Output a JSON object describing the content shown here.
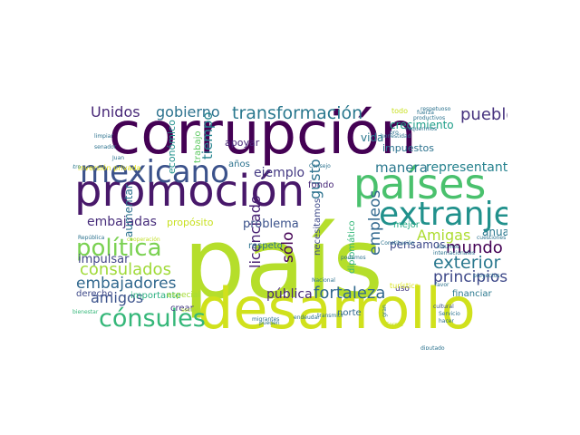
{
  "words": [
    {
      "text": "corrupción",
      "color": "#440154"
    },
    {
      "text": "país",
      "color": "#b5de2b"
    },
    {
      "text": "desarrollo",
      "color": "#d0e11c"
    },
    {
      "text": "promoción",
      "color": "#48186a"
    },
    {
      "text": "países",
      "color": "#4ac16d"
    },
    {
      "text": "mexicano",
      "color": "#3b528b"
    },
    {
      "text": "extranjero",
      "color": "#21918c"
    },
    {
      "text": "política",
      "color": "#7ad151"
    },
    {
      "text": "cónsules",
      "color": "#35b779"
    },
    {
      "text": "consulados",
      "color": "#a0da39"
    },
    {
      "text": "transformación",
      "color": "#2a788e"
    },
    {
      "text": "gobierno",
      "color": "#2c728e"
    },
    {
      "text": "Unidos",
      "color": "#482878"
    },
    {
      "text": "pueblo",
      "color": "#46327e"
    },
    {
      "text": "embajadores",
      "color": "#31688e"
    },
    {
      "text": "principios",
      "color": "#3e4989"
    },
    {
      "text": "exterior",
      "color": "#2a788e"
    },
    {
      "text": "mundo",
      "color": "#440154"
    },
    {
      "text": "fortaleza",
      "color": "#31688e"
    },
    {
      "text": "embajadas",
      "color": "#472d7b"
    },
    {
      "text": "amigos",
      "color": "#3b528b"
    },
    {
      "text": "Amigas",
      "color": "#addc30"
    },
    {
      "text": "manera",
      "color": "#2a788e"
    },
    {
      "text": "representante",
      "color": "#26828e"
    },
    {
      "text": "empleos",
      "color": "#31688e"
    },
    {
      "text": "ejemplo",
      "color": "#443983"
    },
    {
      "text": "sólo",
      "color": "#440154"
    },
    {
      "text": "gusto",
      "color": "#2c728e"
    },
    {
      "text": "licenciado",
      "color": "#482173"
    },
    {
      "text": "problema",
      "color": "#3b528b"
    },
    {
      "text": "pública",
      "color": "#482878"
    },
    {
      "text": "impulsar",
      "color": "#414487"
    },
    {
      "text": "aumentar",
      "color": "#2c728e"
    },
    {
      "text": "crecimiento",
      "color": "#1f9e89"
    },
    {
      "text": "impuestos",
      "color": "#2c728e"
    },
    {
      "text": "económico",
      "color": "#21918c"
    },
    {
      "text": "trabajo",
      "color": "#5ec962"
    },
    {
      "text": "tiempo",
      "color": "#25848e"
    },
    {
      "text": "apoyar",
      "color": "#482878"
    },
    {
      "text": "vida",
      "color": "#2a788e"
    },
    {
      "text": "fondo",
      "color": "#482878"
    },
    {
      "text": "propósito",
      "color": "#c8e020"
    },
    {
      "text": "pensamos",
      "color": "#3e4989"
    },
    {
      "text": "anual",
      "color": "#2a788e"
    },
    {
      "text": "paz",
      "color": "#3b528b"
    },
    {
      "text": "respeto",
      "color": "#2c728e"
    },
    {
      "text": "necesitamos",
      "color": "#3e4989"
    },
    {
      "text": "diplomático",
      "color": "#35b779"
    },
    {
      "text": "mejor",
      "color": "#22a884"
    },
    {
      "text": "derecho",
      "color": "#3e4989"
    },
    {
      "text": "importante",
      "color": "#29af7f"
    },
    {
      "text": "especial",
      "color": "#a5db36"
    },
    {
      "text": "crear",
      "color": "#443983"
    },
    {
      "text": "norte",
      "color": "#31688e"
    },
    {
      "text": "financiar",
      "color": "#2a788e"
    },
    {
      "text": "Relaciones",
      "color": "#3e4989"
    },
    {
      "text": "uso",
      "color": "#443983"
    },
    {
      "text": "años",
      "color": "#2c728e"
    },
    {
      "text": "todo",
      "color": "#c8e020"
    },
    {
      "text": "turística",
      "color": "#d8e219"
    },
    {
      "text": "inversión privada",
      "color": "#e5e419"
    },
    {
      "text": "cuatro",
      "color": "#2a788e"
    },
    {
      "text": "limpiar",
      "color": "#2c728e"
    },
    {
      "text": "senador",
      "color": "#2c728e"
    },
    {
      "text": "Juan",
      "color": "#2c728e"
    },
    {
      "text": "República",
      "color": "#2c728e"
    },
    {
      "text": "cooperación",
      "color": "#c0df25"
    },
    {
      "text": "cultural",
      "color": "#3b528b"
    },
    {
      "text": "Servicio",
      "color": "#2c728e"
    },
    {
      "text": "bienestar",
      "color": "#35b779"
    },
    {
      "text": "sector",
      "color": "#addc30"
    },
    {
      "text": "migrantes",
      "color": "#2c728e"
    },
    {
      "text": "diputado",
      "color": "#2c728e"
    },
    {
      "text": "hacer",
      "color": "#2c728e"
    },
    {
      "text": "Consejo",
      "color": "#2c728e"
    },
    {
      "text": "Nacional",
      "color": "#2c728e"
    },
    {
      "text": "transmitir",
      "color": "#2c728e"
    },
    {
      "text": "podamos",
      "color": "#2c728e"
    },
    {
      "text": "Constitución",
      "color": "#2c728e"
    },
    {
      "text": "insumos",
      "color": "#2c728e"
    },
    {
      "text": "internacionales",
      "color": "#2c728e"
    },
    {
      "text": "favor",
      "color": "#2c728e"
    },
    {
      "text": "proyectos",
      "color": "#2c728e"
    },
    {
      "text": "cuestiones",
      "color": "#2c728e"
    },
    {
      "text": "respetuoso",
      "color": "#2c728e"
    },
    {
      "text": "requerimos",
      "color": "#2c728e"
    },
    {
      "text": "honestidad",
      "color": "#2c728e"
    },
    {
      "text": "productivos",
      "color": "#2c728e"
    },
    {
      "text": "fuerza",
      "color": "#2c728e"
    },
    {
      "text": "pueden",
      "color": "#2c728e"
    },
    {
      "text": "endeudar",
      "color": "#2c728e"
    },
    {
      "text": "pro",
      "color": "#2c728e"
    },
    {
      "text": "gran",
      "color": "#2c728e"
    },
    {
      "text": "Forma",
      "color": "#c0df25"
    }
  ]
}
